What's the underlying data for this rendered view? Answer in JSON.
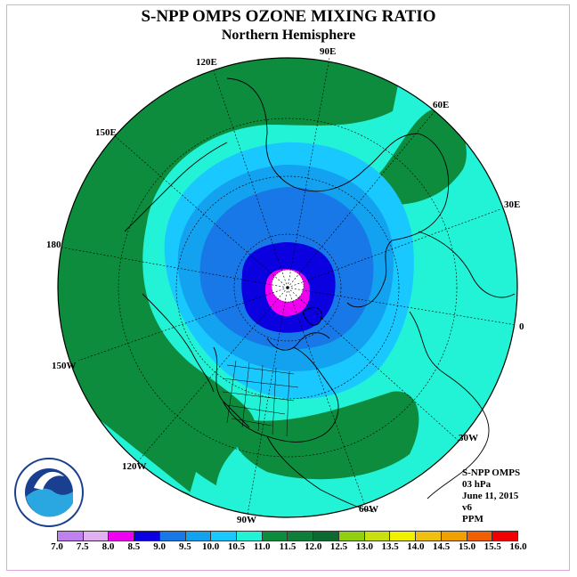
{
  "header": {
    "title": "S-NPP OMPS OZONE MIXING RATIO",
    "subtitle": "Northern Hemisphere"
  },
  "info": {
    "instrument": "S-NPP OMPS",
    "level": "03 hPa",
    "date": "June 11, 2015",
    "version": "v6",
    "units": "PPM"
  },
  "map": {
    "projection": "north polar stereographic",
    "longitude_labels": [
      "90E",
      "60E",
      "30E",
      "0",
      "30W",
      "60W",
      "90W",
      "120W",
      "150W",
      "180",
      "150E",
      "120E"
    ],
    "contour_colors": {
      "11.5-12.0": "#0e7e3a",
      "11.0-11.5": "#0e8c3e",
      "10.5-11.0": "#22f2d5",
      "10.0-10.5": "#18c8ff",
      "9.5-10.0": "#12a2f0",
      "9.0-9.5": "#1878e8",
      "8.5-9.0": "#0b00e0",
      "8.0-8.5": "#f000f0",
      "no-data": "#ffffff"
    }
  },
  "legend": {
    "ticks": [
      "7.0",
      "7.5",
      "8.0",
      "8.5",
      "9.0",
      "9.5",
      "10.0",
      "10.5",
      "11.0",
      "11.5",
      "12.0",
      "12.5",
      "13.0",
      "13.5",
      "14.0",
      "14.5",
      "15.0",
      "15.5",
      "16.0"
    ],
    "colors": [
      "#c080f0",
      "#e0b0f0",
      "#f000f0",
      "#0b00e0",
      "#1878e8",
      "#12a2f0",
      "#18c8ff",
      "#22f2d5",
      "#0e8c3e",
      "#0e7e3a",
      "#0a6a30",
      "#90d010",
      "#c8e010",
      "#f0f000",
      "#f0c010",
      "#f0a000",
      "#f06000",
      "#f00000",
      "#804020"
    ]
  }
}
